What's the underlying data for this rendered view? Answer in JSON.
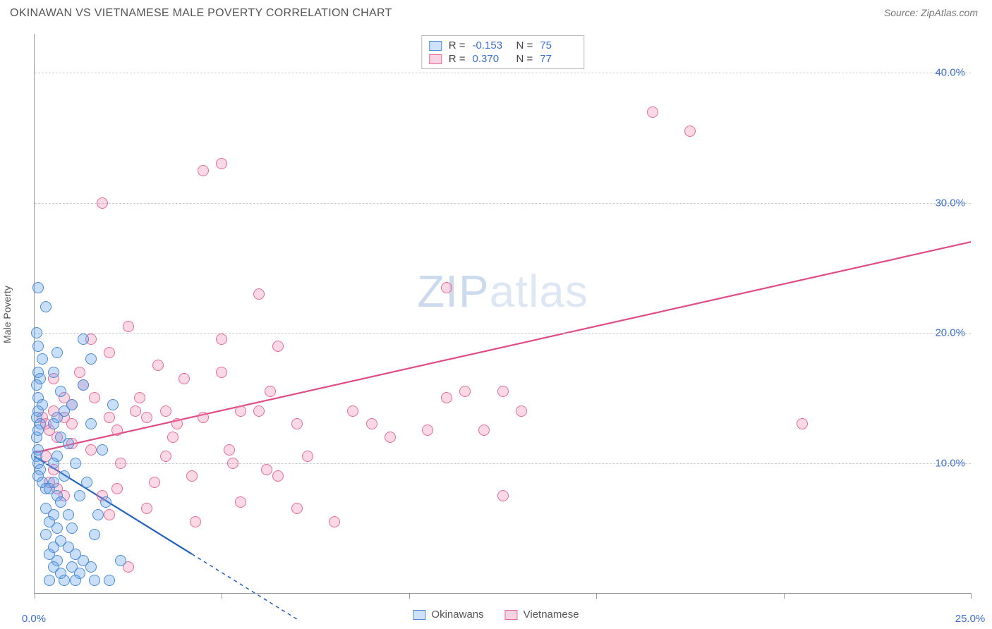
{
  "header": {
    "title": "OKINAWAN VS VIETNAMESE MALE POVERTY CORRELATION CHART",
    "source_prefix": "Source: ",
    "source_name": "ZipAtlas.com"
  },
  "axes": {
    "y_label": "Male Poverty",
    "x_min": 0,
    "x_max": 25,
    "y_min": 0,
    "y_max": 43,
    "y_ticks": [
      10,
      20,
      30,
      40
    ],
    "y_tick_labels": [
      "10.0%",
      "20.0%",
      "30.0%",
      "40.0%"
    ],
    "x_ticks": [
      0,
      5,
      10,
      15,
      20,
      25
    ],
    "x_tick_labels": {
      "0": "0.0%",
      "25": "25.0%"
    },
    "grid_color": "#cccccc",
    "axis_color": "#999999",
    "tick_label_color": "#3b6fd6"
  },
  "watermark": {
    "part1": "ZIP",
    "part2": "atlas"
  },
  "stats": {
    "rows": [
      {
        "swatch": "blue",
        "r_label": "R =",
        "r_value": "-0.153",
        "n_label": "N =",
        "n_value": "75"
      },
      {
        "swatch": "pink",
        "r_label": "R =",
        "r_value": "0.370",
        "n_label": "N =",
        "n_value": "77"
      }
    ]
  },
  "legend": {
    "items": [
      {
        "swatch": "blue",
        "label": "Okinawans"
      },
      {
        "swatch": "pink",
        "label": "Vietnamese"
      }
    ]
  },
  "series": {
    "okinawans": {
      "color_fill": "rgba(100,160,235,0.35)",
      "color_stroke": "#4a8bd6",
      "trend": {
        "x1": 0,
        "y1": 10.5,
        "x2": 4.2,
        "y2": 3.0,
        "dash_x2": 7.0,
        "dash_y2": -2.0,
        "stroke": "#1f5fbf",
        "width": 2.2
      },
      "points": [
        [
          0.1,
          23.5
        ],
        [
          0.3,
          22.0
        ],
        [
          0.05,
          20.0
        ],
        [
          0.1,
          19.0
        ],
        [
          0.2,
          18.0
        ],
        [
          0.1,
          17.0
        ],
        [
          0.15,
          16.5
        ],
        [
          0.05,
          16.0
        ],
        [
          0.1,
          15.0
        ],
        [
          0.2,
          14.5
        ],
        [
          0.1,
          14.0
        ],
        [
          0.05,
          13.5
        ],
        [
          0.15,
          13.0
        ],
        [
          0.1,
          12.5
        ],
        [
          0.05,
          12.0
        ],
        [
          0.1,
          11.0
        ],
        [
          0.05,
          10.5
        ],
        [
          0.1,
          10.0
        ],
        [
          0.15,
          9.5
        ],
        [
          0.1,
          9.0
        ],
        [
          0.2,
          8.5
        ],
        [
          0.3,
          8.0
        ],
        [
          0.6,
          18.5
        ],
        [
          0.5,
          17.0
        ],
        [
          0.7,
          15.5
        ],
        [
          0.8,
          14.0
        ],
        [
          0.6,
          13.5
        ],
        [
          0.5,
          13.0
        ],
        [
          0.7,
          12.0
        ],
        [
          0.9,
          11.5
        ],
        [
          0.6,
          10.5
        ],
        [
          0.5,
          10.0
        ],
        [
          0.8,
          9.0
        ],
        [
          0.5,
          8.5
        ],
        [
          0.4,
          8.0
        ],
        [
          0.6,
          7.5
        ],
        [
          0.7,
          7.0
        ],
        [
          0.3,
          6.5
        ],
        [
          0.5,
          6.0
        ],
        [
          0.9,
          6.0
        ],
        [
          0.4,
          5.5
        ],
        [
          0.6,
          5.0
        ],
        [
          1.0,
          5.0
        ],
        [
          0.3,
          4.5
        ],
        [
          0.7,
          4.0
        ],
        [
          0.5,
          3.5
        ],
        [
          0.9,
          3.5
        ],
        [
          0.4,
          3.0
        ],
        [
          1.1,
          3.0
        ],
        [
          0.6,
          2.5
        ],
        [
          1.3,
          2.5
        ],
        [
          0.5,
          2.0
        ],
        [
          1.0,
          2.0
        ],
        [
          1.5,
          2.0
        ],
        [
          0.7,
          1.5
        ],
        [
          1.2,
          1.5
        ],
        [
          0.4,
          1.0
        ],
        [
          0.8,
          1.0
        ],
        [
          1.1,
          1.0
        ],
        [
          1.6,
          1.0
        ],
        [
          2.0,
          1.0
        ],
        [
          1.2,
          7.5
        ],
        [
          1.5,
          13.0
        ],
        [
          1.0,
          14.5
        ],
        [
          1.3,
          16.0
        ],
        [
          1.1,
          10.0
        ],
        [
          1.4,
          8.5
        ],
        [
          1.7,
          6.0
        ],
        [
          1.5,
          18.0
        ],
        [
          1.3,
          19.5
        ],
        [
          1.8,
          11.0
        ],
        [
          1.6,
          4.5
        ],
        [
          2.1,
          14.5
        ],
        [
          1.9,
          7.0
        ],
        [
          2.3,
          2.5
        ]
      ]
    },
    "vietnamese": {
      "color_fill": "rgba(240,130,170,0.30)",
      "color_stroke": "#e86a9a",
      "trend": {
        "x1": 0,
        "y1": 10.8,
        "x2": 25,
        "y2": 27.0,
        "stroke": "#e14b85",
        "width": 2.2
      },
      "points": [
        [
          0.2,
          13.5
        ],
        [
          0.3,
          13.0
        ],
        [
          0.5,
          14.0
        ],
        [
          0.4,
          12.5
        ],
        [
          0.6,
          12.0
        ],
        [
          0.8,
          13.5
        ],
        [
          0.3,
          10.5
        ],
        [
          0.5,
          9.5
        ],
        [
          0.4,
          8.5
        ],
        [
          0.6,
          8.0
        ],
        [
          0.8,
          7.5
        ],
        [
          1.0,
          13.0
        ],
        [
          1.2,
          17.0
        ],
        [
          1.3,
          16.0
        ],
        [
          1.5,
          19.5
        ],
        [
          1.6,
          15.0
        ],
        [
          1.0,
          14.5
        ],
        [
          2.0,
          18.5
        ],
        [
          1.8,
          7.5
        ],
        [
          2.0,
          13.5
        ],
        [
          2.2,
          12.5
        ],
        [
          2.0,
          6.0
        ],
        [
          2.5,
          2.0
        ],
        [
          2.3,
          10.0
        ],
        [
          2.5,
          20.5
        ],
        [
          2.8,
          15.0
        ],
        [
          3.0,
          13.5
        ],
        [
          3.5,
          14.0
        ],
        [
          3.3,
          17.5
        ],
        [
          3.5,
          10.5
        ],
        [
          3.0,
          6.5
        ],
        [
          3.7,
          12.0
        ],
        [
          4.0,
          16.5
        ],
        [
          4.2,
          9.0
        ],
        [
          4.5,
          13.5
        ],
        [
          4.3,
          5.5
        ],
        [
          4.5,
          32.5
        ],
        [
          5.0,
          33.0
        ],
        [
          5.0,
          19.5
        ],
        [
          5.0,
          17.0
        ],
        [
          5.2,
          11.0
        ],
        [
          5.5,
          7.0
        ],
        [
          5.5,
          14.0
        ],
        [
          5.3,
          10.0
        ],
        [
          6.0,
          23.0
        ],
        [
          6.2,
          9.5
        ],
        [
          6.5,
          19.0
        ],
        [
          6.3,
          15.5
        ],
        [
          6.0,
          14.0
        ],
        [
          6.5,
          9.0
        ],
        [
          7.0,
          13.0
        ],
        [
          7.0,
          6.5
        ],
        [
          7.3,
          10.5
        ],
        [
          8.0,
          5.5
        ],
        [
          8.5,
          14.0
        ],
        [
          9.0,
          13.0
        ],
        [
          9.5,
          12.0
        ],
        [
          10.5,
          12.5
        ],
        [
          11.0,
          23.5
        ],
        [
          11.0,
          15.0
        ],
        [
          11.5,
          15.5
        ],
        [
          12.0,
          12.5
        ],
        [
          12.5,
          7.5
        ],
        [
          12.5,
          15.5
        ],
        [
          13.0,
          14.0
        ],
        [
          16.5,
          37.0
        ],
        [
          17.5,
          35.5
        ],
        [
          1.8,
          30.0
        ],
        [
          20.5,
          13.0
        ],
        [
          1.0,
          11.5
        ],
        [
          0.5,
          16.5
        ],
        [
          0.8,
          15.0
        ],
        [
          1.5,
          11.0
        ],
        [
          2.2,
          8.0
        ],
        [
          2.7,
          14.0
        ],
        [
          3.2,
          8.5
        ],
        [
          3.8,
          13.0
        ]
      ]
    }
  }
}
